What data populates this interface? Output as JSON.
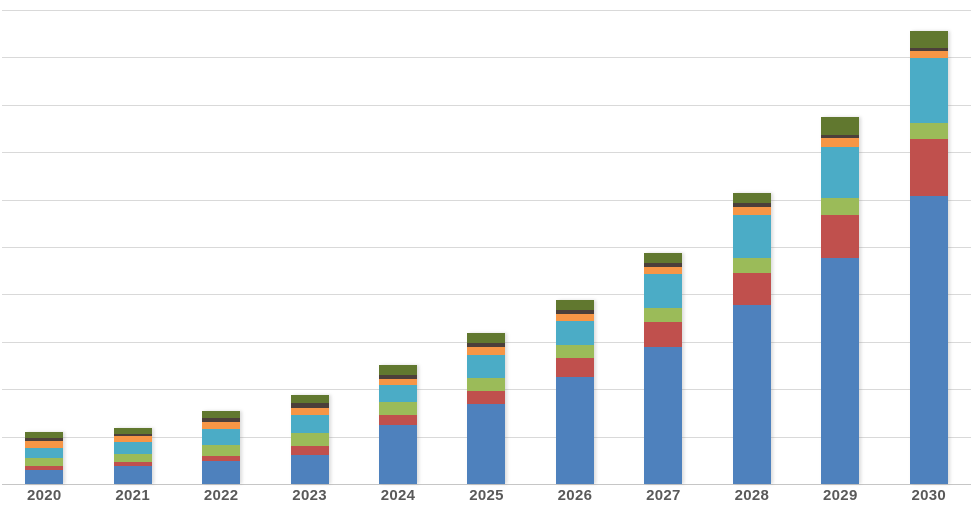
{
  "chart_data": {
    "type": "bar",
    "stacked": true,
    "title": "",
    "xlabel": "",
    "ylabel": "",
    "legend": "none",
    "categories": [
      "2020",
      "2021",
      "2022",
      "2023",
      "2024",
      "2025",
      "2026",
      "2027",
      "2028",
      "2029",
      "2030"
    ],
    "series": [
      {
        "name": "blue",
        "color": "#4e81bd",
        "values": [
          0.29,
          0.39,
          0.49,
          0.62,
          1.25,
          1.69,
          2.26,
          2.9,
          3.78,
          4.77,
          6.07
        ]
      },
      {
        "name": "red",
        "color": "#c0504d",
        "values": [
          0.09,
          0.08,
          0.11,
          0.18,
          0.21,
          0.27,
          0.4,
          0.51,
          0.68,
          0.9,
          1.2
        ]
      },
      {
        "name": "green",
        "color": "#9bbb59",
        "values": [
          0.17,
          0.16,
          0.23,
          0.28,
          0.28,
          0.28,
          0.28,
          0.3,
          0.3,
          0.37,
          0.35
        ]
      },
      {
        "name": "teal",
        "color": "#4bacc6",
        "values": [
          0.21,
          0.25,
          0.33,
          0.37,
          0.34,
          0.49,
          0.49,
          0.72,
          0.92,
          1.08,
          1.37
        ]
      },
      {
        "name": "orange",
        "color": "#f79646",
        "values": [
          0.14,
          0.13,
          0.14,
          0.16,
          0.14,
          0.16,
          0.16,
          0.15,
          0.17,
          0.18,
          0.14
        ]
      },
      {
        "name": "dark-brown",
        "color": "#4c3f3a",
        "values": [
          0.08,
          0.04,
          0.09,
          0.11,
          0.08,
          0.09,
          0.08,
          0.08,
          0.07,
          0.07,
          0.07
        ]
      },
      {
        "name": "dark-olive",
        "color": "#61782f",
        "values": [
          0.12,
          0.14,
          0.15,
          0.16,
          0.21,
          0.21,
          0.21,
          0.21,
          0.23,
          0.37,
          0.35
        ]
      }
    ],
    "ylim": [
      0,
      10
    ],
    "grid": {
      "show": true,
      "interval": 1,
      "color": "#d9d9d9",
      "baseline_color": "#c6c6c6"
    },
    "axis": {
      "tick_label_color": "#595959"
    }
  }
}
